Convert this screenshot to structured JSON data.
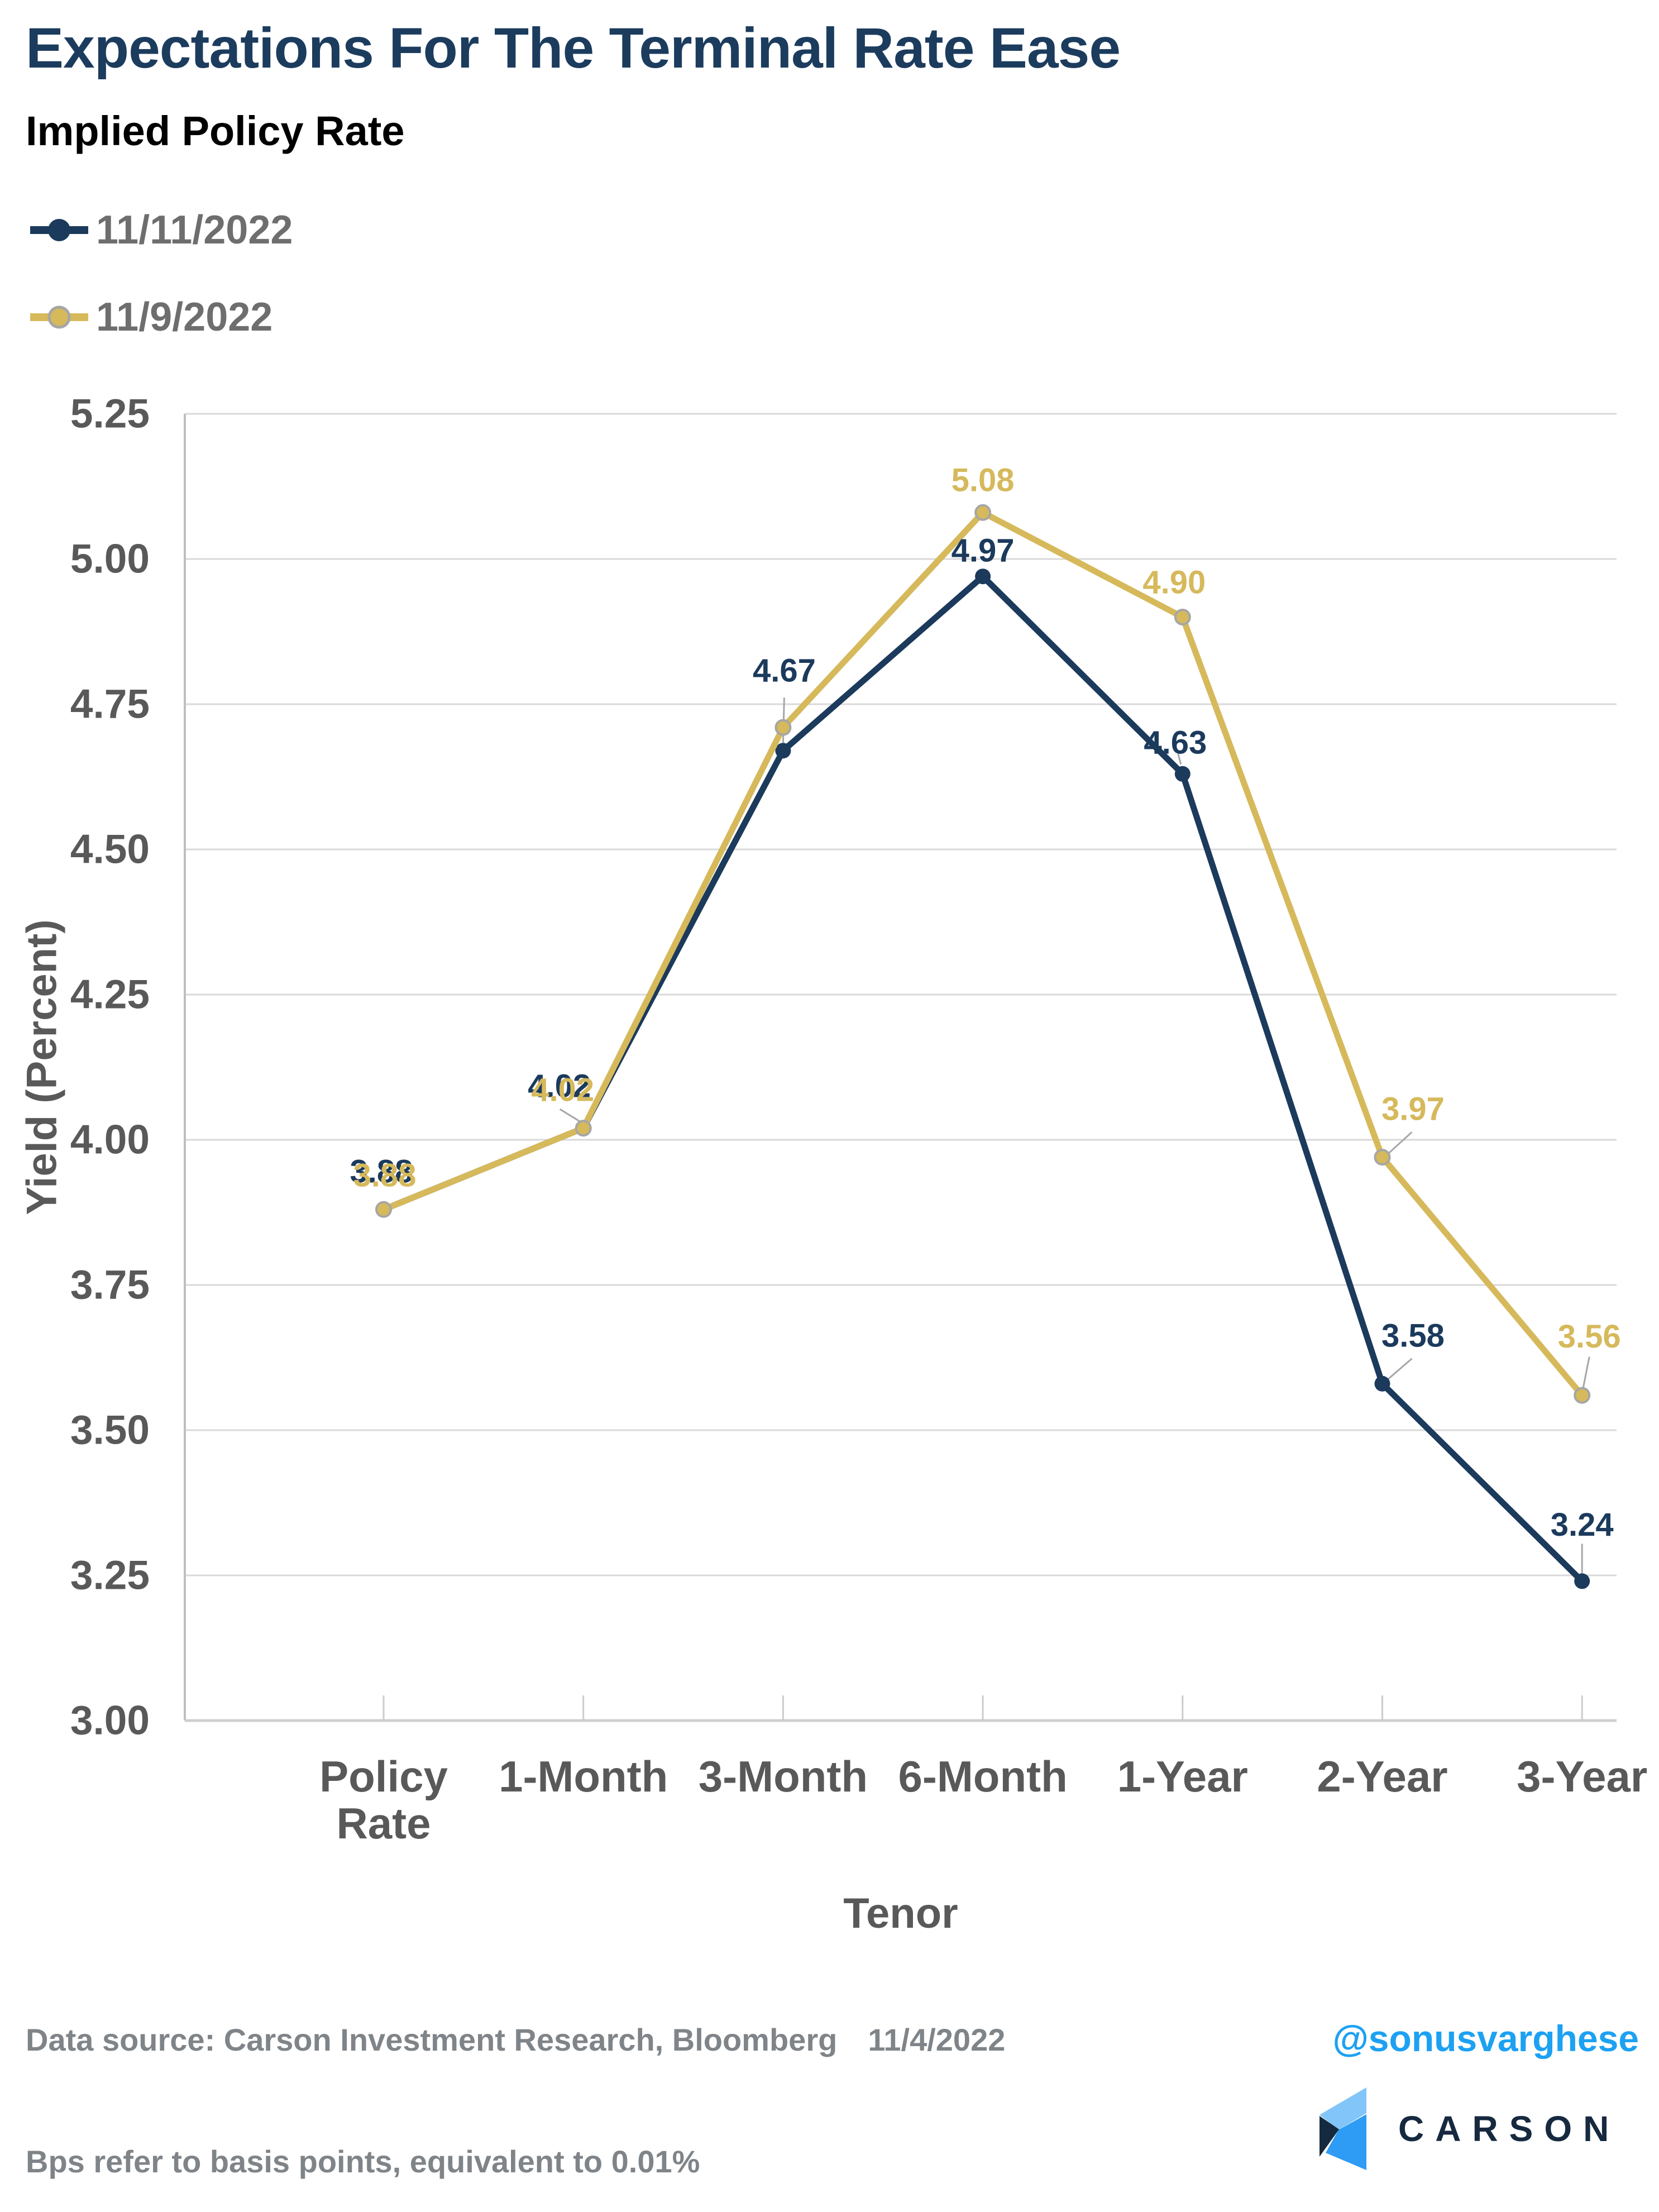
{
  "chart_data": {
    "type": "line",
    "title": "Expectations For The Terminal Rate Ease",
    "subtitle": "Implied Policy Rate",
    "xlabel": "Tenor",
    "ylabel": "Yield (Percent)",
    "categories": [
      "Policy\nRate",
      "1-Month",
      "3-Month",
      "6-Month",
      "1-Year",
      "2-Year",
      "3-Year"
    ],
    "ylim": [
      3.0,
      5.25
    ],
    "ytick_step": 0.25,
    "grid": true,
    "legend_position": "top-left",
    "colors": {
      "grid": "#d9d9d9",
      "axis_line": "#cfcfcf",
      "plot_border": "#bfbfbf",
      "tick_mark": "#cccccc",
      "tick_label": "#595959",
      "leader_line": "#a6a6a6"
    },
    "series": [
      {
        "name": "11/11/2022",
        "color": "#1b3a5c",
        "marker": "circle-filled",
        "values": [
          3.88,
          4.02,
          4.67,
          4.97,
          4.63,
          3.58,
          3.24
        ],
        "labels": [
          "3.88",
          "4.02",
          "4.67",
          "4.97",
          "4.63",
          "3.58",
          "3.24"
        ],
        "label_offsets": [
          [
            -4,
            -68
          ],
          [
            -43,
            -75
          ],
          [
            2,
            -143
          ],
          [
            0,
            -46
          ],
          [
            -13,
            -56
          ],
          [
            55,
            -86
          ],
          [
            0,
            -101
          ]
        ],
        "leaders": [
          null,
          null,
          [
            2,
            -95,
            0,
            -14
          ],
          null,
          [
            -8,
            -36,
            -3,
            -17
          ],
          [
            53,
            -45,
            9,
            -7
          ],
          [
            0,
            -67,
            0,
            -14
          ]
        ]
      },
      {
        "name": "11/9/2022",
        "color": "#d6b95b",
        "marker": "circle-ring",
        "marker_stroke": "#a6a6a6",
        "values": [
          3.88,
          4.02,
          4.71,
          5.08,
          4.9,
          3.97,
          3.56
        ],
        "labels": [
          "3.88",
          "4.02",
          "",
          "5.08",
          "4.90",
          "3.97",
          "3.56"
        ],
        "label_offsets": [
          [
            2,
            -61
          ],
          [
            -37,
            -68
          ],
          null,
          [
            0,
            -58
          ],
          [
            -15,
            -62
          ],
          [
            55,
            -86
          ],
          [
            13,
            -105
          ]
        ],
        "leaders": [
          null,
          [
            -42,
            -34,
            -3,
            -10
          ],
          null,
          null,
          null,
          [
            53,
            -45,
            9,
            -5
          ],
          [
            13,
            -69,
            1,
            -8
          ]
        ]
      }
    ]
  },
  "footer": {
    "source": "Data source: Carson Investment Research, Bloomberg",
    "date": "11/4/2022",
    "note": "Bps refer to basis points, equivalent to 0.01%",
    "handle": "@sonusvarghese",
    "handle_color": "#1da1f2",
    "logo": {
      "text": "CARSON",
      "icon": "carson-chevron-logo",
      "light": "#82c5f9",
      "bright": "#2e9cf4",
      "dark": "#152a3e"
    }
  }
}
